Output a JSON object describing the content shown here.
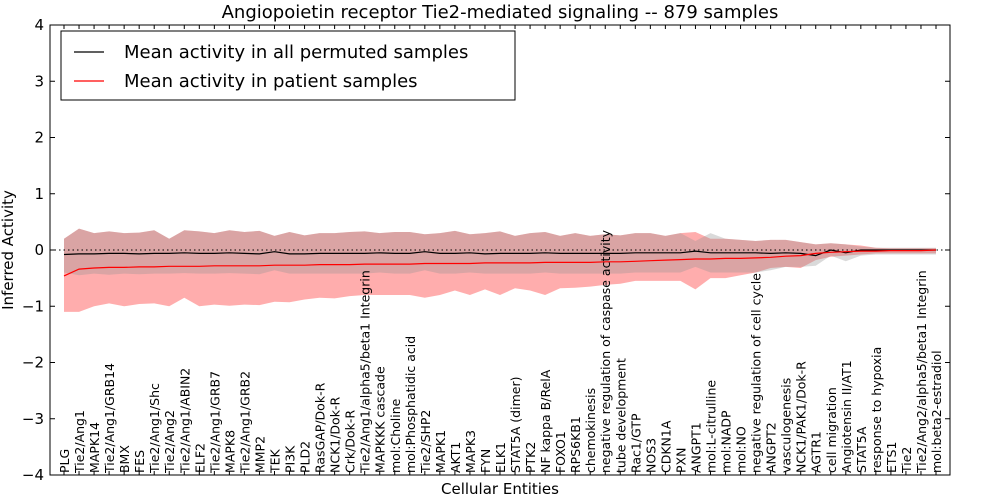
{
  "chart_data": {
    "type": "line",
    "title": "Angiopoietin receptor Tie2-mediated signaling -- 879 samples",
    "xlabel": "Cellular Entities",
    "ylabel": "Inferred Activity",
    "ylim": [
      -4,
      4
    ],
    "yticks": [
      "4",
      "3",
      "2",
      "1",
      "0",
      "−1",
      "−2",
      "−3",
      "−4"
    ],
    "ytick_values": [
      4,
      3,
      2,
      1,
      0,
      -1,
      -2,
      -3,
      -4
    ],
    "reference_line": 0,
    "legend_position": "top-left",
    "categories": [
      "PLG",
      "Tie2/Ang1",
      "MAPK14",
      "Tie2/Ang1/GRB14",
      "BMX",
      "FES",
      "Tie2/Ang1/Shc",
      "Tie2/Ang2",
      "Tie2/Ang1/ABIN2",
      "ELF2",
      "Tie2/Ang1/GRB7",
      "MAPK8",
      "Tie2/Ang1/GRB2",
      "MMP2",
      "TEK",
      "PI3K",
      "PLD2",
      "RasGAP/Dok-R",
      "NCK1/Dok-R",
      "Crk/Dok-R",
      "Tie2/Ang1/alpha5/beta1 Integrin",
      "MAPKKK cascade",
      "mol:Choline",
      "mol:Phosphatidic acid",
      "Tie2/SHP2",
      "MAPK1",
      "AKT1",
      "MAPK3",
      "FYN",
      "ELK1",
      "STAT5A (dimer)",
      "PTK2",
      "NF kappa B/RelA",
      "FOXO1",
      "RPS6KB1",
      "chemokinesis",
      "negative regulation of caspase activity",
      "tube development",
      "Rac1/GTP",
      "NOS3",
      "CDKN1A",
      "PXN",
      "ANGPT1",
      "mol:L-citrulline",
      "mol:NADP",
      "mol:NO",
      "negative regulation of cell cycle",
      "ANGPT2",
      "vasculogenesis",
      "NCK1/PAK1/Dok-R",
      "AGTR1",
      "cell migration",
      "Angiotensin II/AT1",
      "STAT5A",
      "response to hypoxia",
      "ETS1",
      "Tie2",
      "Tie2/Ang2/alpha5/beta1 Integrin",
      "mol:beta2-estradiol"
    ],
    "series": [
      {
        "name": "Mean activity in all permuted samples",
        "color": "#000000",
        "values": [
          -0.08,
          -0.07,
          -0.07,
          -0.06,
          -0.06,
          -0.07,
          -0.06,
          -0.06,
          -0.05,
          -0.06,
          -0.06,
          -0.05,
          -0.06,
          -0.07,
          -0.03,
          -0.07,
          -0.07,
          -0.06,
          -0.06,
          -0.06,
          -0.06,
          -0.05,
          -0.06,
          -0.06,
          -0.03,
          -0.06,
          -0.06,
          -0.05,
          -0.07,
          -0.06,
          -0.06,
          -0.06,
          -0.05,
          -0.06,
          -0.06,
          -0.06,
          -0.06,
          -0.06,
          -0.05,
          -0.05,
          -0.05,
          -0.05,
          -0.02,
          -0.05,
          -0.05,
          -0.05,
          -0.05,
          -0.06,
          -0.05,
          -0.06,
          -0.1,
          0.0,
          -0.05,
          0.0,
          0.0,
          0.0,
          0.0,
          0.0,
          0.0
        ],
        "band_upper": [
          0.2,
          0.38,
          0.3,
          0.33,
          0.3,
          0.31,
          0.35,
          0.2,
          0.35,
          0.33,
          0.3,
          0.35,
          0.32,
          0.34,
          0.25,
          0.32,
          0.26,
          0.3,
          0.3,
          0.32,
          0.33,
          0.3,
          0.32,
          0.32,
          0.28,
          0.3,
          0.34,
          0.28,
          0.3,
          0.33,
          0.25,
          0.3,
          0.32,
          0.25,
          0.3,
          0.25,
          0.28,
          0.26,
          0.3,
          0.3,
          0.25,
          0.3,
          0.16,
          0.3,
          0.2,
          0.18,
          0.16,
          0.18,
          0.18,
          0.14,
          0.1,
          0.12,
          0.1,
          0.06,
          0.04,
          0.04,
          0.04,
          0.04,
          0.04
        ],
        "band_lower": [
          -0.4,
          -0.45,
          -0.42,
          -0.44,
          -0.42,
          -0.43,
          -0.42,
          -0.42,
          -0.41,
          -0.42,
          -0.42,
          -0.41,
          -0.42,
          -0.43,
          -0.36,
          -0.42,
          -0.42,
          -0.42,
          -0.42,
          -0.42,
          -0.42,
          -0.4,
          -0.42,
          -0.42,
          -0.36,
          -0.42,
          -0.42,
          -0.4,
          -0.42,
          -0.42,
          -0.42,
          -0.42,
          -0.4,
          -0.42,
          -0.42,
          -0.42,
          -0.42,
          -0.42,
          -0.4,
          -0.4,
          -0.4,
          -0.4,
          -0.3,
          -0.4,
          -0.4,
          -0.4,
          -0.4,
          -0.36,
          -0.3,
          -0.3,
          -0.28,
          -0.1,
          -0.2,
          -0.1,
          -0.08,
          -0.08,
          -0.08,
          -0.08,
          -0.08
        ]
      },
      {
        "name": "Mean activity in patient samples",
        "color": "#ff0000",
        "values": [
          -0.46,
          -0.34,
          -0.32,
          -0.31,
          -0.31,
          -0.3,
          -0.3,
          -0.29,
          -0.29,
          -0.29,
          -0.28,
          -0.28,
          -0.28,
          -0.28,
          -0.27,
          -0.27,
          -0.27,
          -0.26,
          -0.26,
          -0.26,
          -0.25,
          -0.25,
          -0.25,
          -0.25,
          -0.24,
          -0.24,
          -0.24,
          -0.24,
          -0.23,
          -0.23,
          -0.23,
          -0.23,
          -0.22,
          -0.22,
          -0.22,
          -0.22,
          -0.21,
          -0.21,
          -0.2,
          -0.19,
          -0.18,
          -0.17,
          -0.16,
          -0.16,
          -0.15,
          -0.15,
          -0.14,
          -0.13,
          -0.11,
          -0.1,
          -0.06,
          -0.04,
          -0.03,
          -0.02,
          -0.02,
          -0.01,
          -0.01,
          -0.01,
          0.0
        ],
        "band_upper": [
          0.2,
          0.38,
          0.3,
          0.33,
          0.3,
          0.31,
          0.35,
          0.2,
          0.35,
          0.33,
          0.3,
          0.35,
          0.32,
          0.34,
          0.25,
          0.32,
          0.26,
          0.3,
          0.3,
          0.32,
          0.33,
          0.3,
          0.32,
          0.32,
          0.28,
          0.3,
          0.34,
          0.28,
          0.3,
          0.33,
          0.25,
          0.3,
          0.32,
          0.25,
          0.3,
          0.25,
          0.28,
          0.26,
          0.3,
          0.3,
          0.25,
          0.3,
          0.32,
          0.2,
          0.2,
          0.18,
          0.16,
          0.18,
          0.18,
          0.14,
          0.1,
          0.12,
          0.1,
          0.08,
          0.04,
          0.03,
          0.03,
          0.03,
          0.03
        ],
        "band_lower": [
          -1.1,
          -1.1,
          -1.0,
          -0.95,
          -1.0,
          -0.96,
          -0.95,
          -1.0,
          -0.85,
          -1.0,
          -0.97,
          -0.99,
          -0.97,
          -0.98,
          -0.92,
          -0.93,
          -0.88,
          -0.85,
          -0.86,
          -0.82,
          -0.8,
          -0.8,
          -0.8,
          -0.8,
          -0.85,
          -0.8,
          -0.72,
          -0.8,
          -0.7,
          -0.8,
          -0.68,
          -0.72,
          -0.8,
          -0.68,
          -0.67,
          -0.65,
          -0.62,
          -0.6,
          -0.55,
          -0.55,
          -0.55,
          -0.55,
          -0.7,
          -0.5,
          -0.5,
          -0.45,
          -0.4,
          -0.32,
          -0.3,
          -0.32,
          -0.18,
          -0.12,
          -0.1,
          -0.08,
          -0.06,
          -0.06,
          -0.06,
          -0.06,
          -0.06
        ]
      }
    ]
  }
}
